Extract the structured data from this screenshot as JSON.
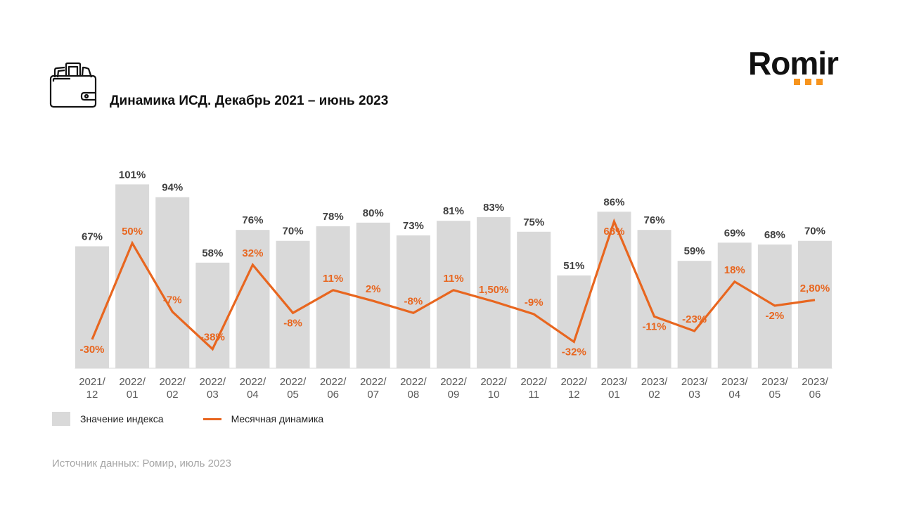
{
  "header": {
    "title": "Динамика ИСД. Декабрь 2021 – июнь 2023",
    "icon": "wallet-icon",
    "logo_text": "Romir"
  },
  "colors": {
    "bar": "#d9d9d9",
    "line": "#e8661f",
    "bar_label": "#404040",
    "line_label": "#e8661f",
    "logo_accent": "#f7941d"
  },
  "legend": {
    "items": [
      {
        "label": "Значение индекса",
        "kind": "bar"
      },
      {
        "label": "Месячная динамика",
        "kind": "line"
      }
    ]
  },
  "footer": {
    "source": "Источник данных: Ромир, июль 2023"
  },
  "chart_data": {
    "type": "bar",
    "title": "Динамика ИСД. Декабрь 2021 – июнь 2023",
    "xlabel": "",
    "ylabel": "",
    "grid": false,
    "legend_position": "bottom-left",
    "categories": [
      "2021/12",
      "2022/01",
      "2022/02",
      "2022/03",
      "2022/04",
      "2022/05",
      "2022/06",
      "2022/07",
      "2022/08",
      "2022/09",
      "2022/10",
      "2022/11",
      "2022/12",
      "2023/01",
      "2023/02",
      "2023/03",
      "2023/04",
      "2023/05",
      "2023/06"
    ],
    "category_lines": [
      [
        "2021/",
        "12"
      ],
      [
        "2022/",
        "01"
      ],
      [
        "2022/",
        "02"
      ],
      [
        "2022/",
        "03"
      ],
      [
        "2022/",
        "04"
      ],
      [
        "2022/",
        "05"
      ],
      [
        "2022/",
        "06"
      ],
      [
        "2022/",
        "07"
      ],
      [
        "2022/",
        "08"
      ],
      [
        "2022/",
        "09"
      ],
      [
        "2022/",
        "10"
      ],
      [
        "2022/",
        "11"
      ],
      [
        "2022/",
        "12"
      ],
      [
        "2023/",
        "01"
      ],
      [
        "2023/",
        "02"
      ],
      [
        "2023/",
        "03"
      ],
      [
        "2023/",
        "04"
      ],
      [
        "2023/",
        "05"
      ],
      [
        "2023/",
        "06"
      ]
    ],
    "series": [
      {
        "name": "Значение индекса",
        "type": "bar",
        "unit": "%",
        "values": [
          67,
          101,
          94,
          58,
          76,
          70,
          78,
          80,
          73,
          81,
          83,
          75,
          51,
          86,
          76,
          59,
          69,
          68,
          70
        ],
        "labels": [
          "67%",
          "101%",
          "94%",
          "58%",
          "76%",
          "70%",
          "78%",
          "80%",
          "73%",
          "81%",
          "83%",
          "75%",
          "51%",
          "86%",
          "76%",
          "59%",
          "69%",
          "68%",
          "70%"
        ]
      },
      {
        "name": "Месячная динамика",
        "type": "line",
        "unit": "%",
        "values": [
          -30,
          50,
          -7,
          -38,
          32,
          -8,
          11,
          2,
          -8,
          11,
          1.5,
          -9,
          -32,
          68,
          -11,
          -23,
          18,
          -2,
          2.8
        ],
        "labels": [
          "-30%",
          "50%",
          "-7%",
          "-38%",
          "32%",
          "-8%",
          "11%",
          "2%",
          "-8%",
          "11%",
          "1,50%",
          "-9%",
          "-32%",
          "68%",
          "-11%",
          "-23%",
          "18%",
          "-2%",
          "2,80%"
        ],
        "label_position": [
          "below",
          "above",
          "above",
          "above",
          "above",
          "below",
          "above",
          "above",
          "above",
          "above",
          "above",
          "above",
          "below",
          "below",
          "below",
          "above",
          "above",
          "below",
          "above"
        ]
      }
    ]
  }
}
